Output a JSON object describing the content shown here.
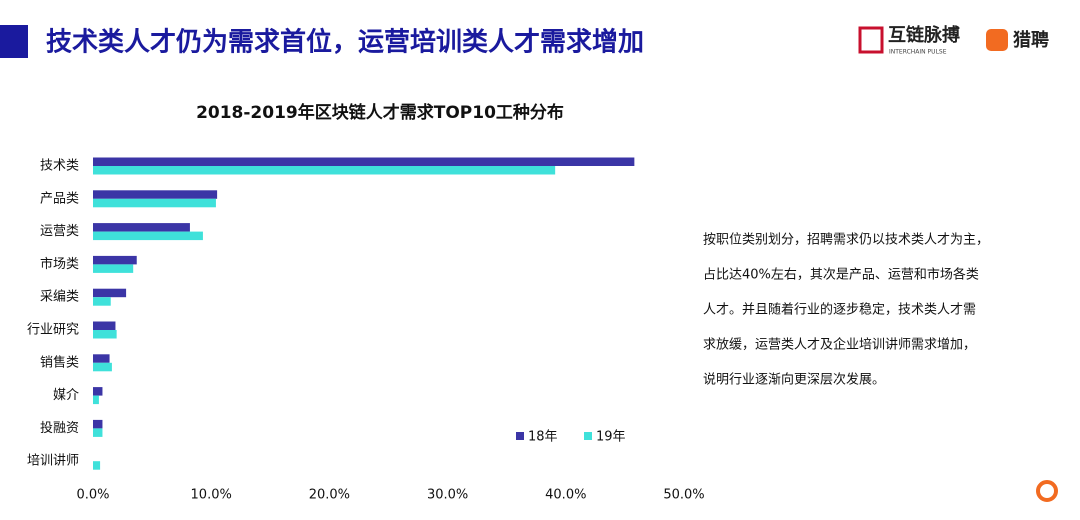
{
  "header": {
    "title": "技术类人才仍为需求首位，运营培训类人才需求增加",
    "logo_main": "互链脉搏",
    "logo_sub": "INTERCHAIN PULSE",
    "logo_partner": "猎聘"
  },
  "chart_data": {
    "type": "hbar",
    "title": "2018-2019年区块链人才需求TOP10工种分布",
    "categories": [
      "技术类",
      "产品类",
      "运营类",
      "市场类",
      "采编类",
      "行业研究",
      "销售类",
      "媒介",
      "投融资",
      "培训讲师"
    ],
    "series": [
      {
        "name": "18年",
        "color": "#3b35a6",
        "values": [
          45.8,
          10.5,
          8.2,
          3.7,
          2.8,
          1.9,
          1.4,
          0.8,
          0.8,
          0
        ]
      },
      {
        "name": "19年",
        "color": "#3fe1da",
        "values": [
          39.1,
          10.4,
          9.3,
          3.4,
          1.5,
          2.0,
          1.6,
          0.5,
          0.8,
          0.6
        ]
      }
    ],
    "xlim": [
      0,
      50
    ],
    "xticks": [
      {
        "value": 0,
        "label": "0.0%"
      },
      {
        "value": 10,
        "label": "10.0%"
      },
      {
        "value": 20,
        "label": "20.0%"
      },
      {
        "value": 30,
        "label": "30.0%"
      },
      {
        "value": 40,
        "label": "40.0%"
      },
      {
        "value": 50,
        "label": "50.0%"
      }
    ],
    "grid": false
  },
  "description": {
    "lines": [
      "按职位类别划分，招聘需求仍以技术类人才为主，",
      "占比达40%左右，其次是产品、运营和市场各类",
      "人才。并且随着行业的逐步稳定，技术类人才需",
      "求放缓，运营类人才及企业培训讲师需求增加，",
      "说明行业逐渐向更深层次发展。"
    ]
  }
}
